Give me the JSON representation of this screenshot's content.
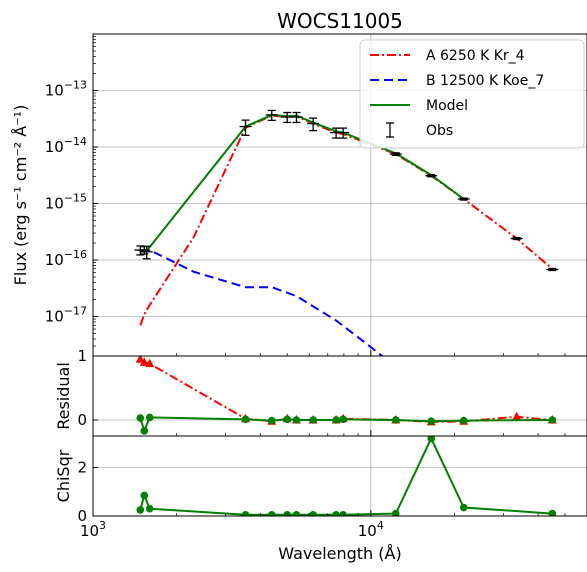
{
  "chart_data": {
    "type": "line",
    "title": "WOCS11005",
    "xlabel": "Wavelength (Å)",
    "x_scale": "log",
    "xlim": [
      1000,
      60000
    ],
    "x_ticks": [
      {
        "value": 1000,
        "label": "10",
        "exp": "3"
      },
      {
        "value": 10000,
        "label": "10",
        "exp": "4"
      }
    ],
    "legend_position": "top-right",
    "panels": [
      {
        "name": "flux",
        "ylabel": "Flux (erg s⁻¹ cm⁻² Å⁻¹)",
        "y_scale": "log",
        "ylim": [
          2e-18,
          1e-12
        ],
        "y_ticks": [
          {
            "value": 1e-17,
            "label": "10",
            "exp": "−17"
          },
          {
            "value": 1e-16,
            "label": "10",
            "exp": "−16"
          },
          {
            "value": 1e-15,
            "label": "10",
            "exp": "−15"
          },
          {
            "value": 1e-14,
            "label": "10",
            "exp": "−14"
          },
          {
            "value": 1e-13,
            "label": "10",
            "exp": "−13"
          }
        ],
        "grid": true,
        "series": [
          {
            "name": "A 6250 K  Kr_4",
            "style": "dashdot",
            "color": "#ff0000",
            "x": [
              1480,
              1530,
              1560,
              1600,
              2300,
              3000,
              3540,
              4400,
              5000,
              5400,
              6200,
              7500,
              7950,
              12300,
              16500,
              21600,
              33500,
              45000
            ],
            "y": [
              7e-18,
              1.1e-17,
              1.3e-17,
              1.6e-17,
              2.5e-16,
              4e-15,
              2.2e-14,
              3.6e-14,
              3.4e-14,
              3.5e-14,
              2.6e-14,
              1.8e-14,
              1.7e-14,
              7.5e-15,
              3.1e-15,
              1.2e-15,
              2.4e-16,
              7e-17
            ]
          },
          {
            "name": "B 12500 K  Koe_7",
            "style": "dashed",
            "color": "#0000ff",
            "x": [
              1480,
              1600,
              2300,
              3540,
              4400,
              5400,
              7500,
              9500,
              12300
            ],
            "y": [
              1.5e-16,
              1.5e-16,
              6.2e-17,
              3.3e-17,
              3.3e-17,
              2.3e-17,
              8.5e-18,
              3.5e-18,
              1.3e-18
            ]
          },
          {
            "name": "Model",
            "style": "solid",
            "color": "#008000",
            "x": [
              1480,
              1530,
              1600,
              3540,
              4400,
              5000,
              5400,
              6200,
              7500,
              7950,
              12300,
              16500,
              21600
            ],
            "y": [
              1.5e-16,
              1.4e-16,
              1.7e-16,
              2.3e-14,
              3.7e-14,
              3.5e-14,
              3.6e-14,
              2.7e-14,
              1.9e-14,
              1.8e-14,
              7.7e-15,
              3.2e-15,
              1.2e-15
            ]
          },
          {
            "name": "Obs",
            "style": "errorbar",
            "color": "#000000",
            "x": [
              1480,
              1530,
              1560,
              3540,
              4400,
              5000,
              5400,
              6200,
              7500,
              7950,
              12300,
              16500,
              21600,
              33500,
              45000
            ],
            "y": [
              1.5e-16,
              1.5e-16,
              1.4e-16,
              2.3e-14,
              3.7e-14,
              3.4e-14,
              3.4e-14,
              2.6e-14,
              1.8e-14,
              1.8e-14,
              7.5e-15,
              3.1e-15,
              1.2e-15,
              2.4e-16,
              6.8e-17
            ],
            "yerr_frac": [
              0.18,
              0.15,
              0.25,
              0.3,
              0.2,
              0.2,
              0.2,
              0.25,
              0.2,
              0.2,
              0.05,
              0.04,
              0.04,
              0.04,
              0.04
            ]
          }
        ]
      },
      {
        "name": "residual",
        "ylabel": "Residual",
        "y_scale": "linear",
        "ylim": [
          -0.25,
          1.0
        ],
        "y_ticks": [
          {
            "value": 0,
            "label": "0"
          },
          {
            "value": 1,
            "label": "1"
          }
        ],
        "grid": true,
        "series": [
          {
            "name": "A residual",
            "style": "dashdot",
            "color": "#ff0000",
            "marker": "triangle",
            "x": [
              1480,
              1530,
              1600,
              3540,
              4400,
              5000,
              5400,
              6200,
              7500,
              7950,
              12300,
              16500,
              21600,
              33500,
              45000
            ],
            "y": [
              0.95,
              0.9,
              0.88,
              0.02,
              -0.02,
              0.02,
              0.0,
              0.0,
              0.0,
              0.02,
              0.0,
              -0.03,
              -0.02,
              0.05,
              0.0
            ]
          },
          {
            "name": "Model residual",
            "style": "solid",
            "color": "#008000",
            "marker": "circle",
            "x": [
              1480,
              1530,
              1600,
              3540,
              4400,
              5000,
              5400,
              6200,
              7500,
              7950,
              12300,
              16500,
              21600,
              45000
            ],
            "y": [
              0.03,
              -0.17,
              0.04,
              0.01,
              -0.01,
              0.01,
              0.0,
              0.0,
              0.0,
              0.01,
              0.0,
              -0.02,
              -0.01,
              0.0
            ]
          }
        ]
      },
      {
        "name": "chisqr",
        "ylabel": "ChiSqr",
        "y_scale": "linear",
        "ylim": [
          0,
          3.3
        ],
        "y_ticks": [
          {
            "value": 0,
            "label": "0"
          },
          {
            "value": 2,
            "label": "2"
          }
        ],
        "grid": true,
        "series": [
          {
            "name": "ChiSqr",
            "style": "solid",
            "color": "#008000",
            "marker": "circle",
            "x": [
              1480,
              1530,
              1600,
              3540,
              4400,
              5000,
              5400,
              6200,
              7500,
              7950,
              12300,
              16500,
              21600,
              45000
            ],
            "y": [
              0.25,
              0.85,
              0.3,
              0.05,
              0.05,
              0.05,
              0.05,
              0.05,
              0.05,
              0.05,
              0.1,
              3.2,
              0.35,
              0.1
            ]
          }
        ]
      }
    ]
  }
}
